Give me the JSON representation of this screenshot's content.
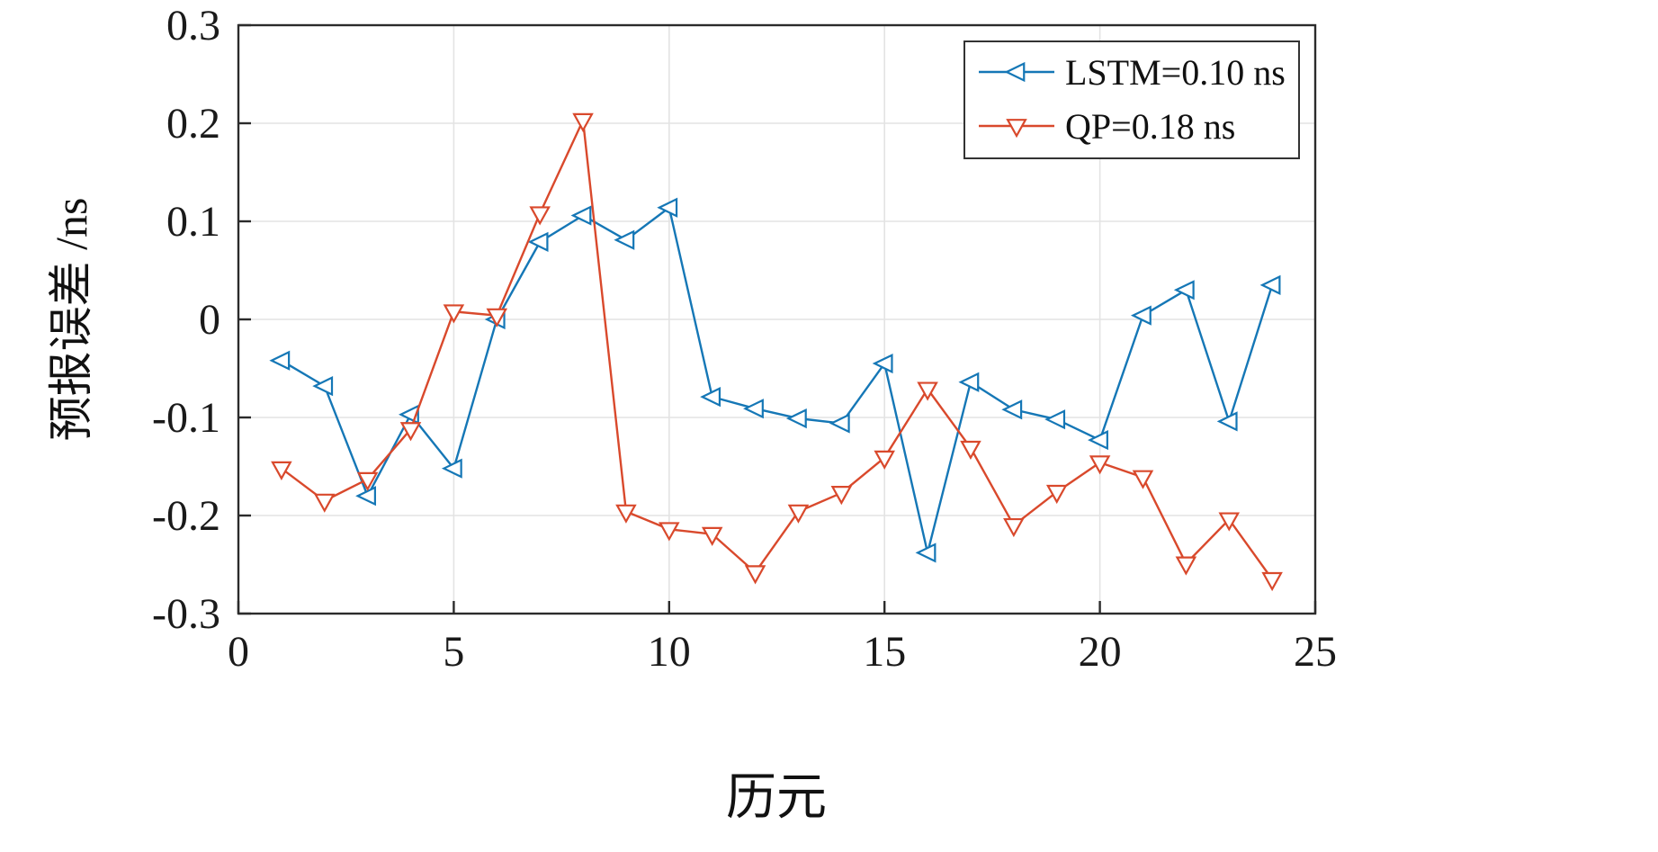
{
  "chart_data": {
    "type": "line",
    "title": "",
    "xlabel": "历元",
    "ylabel": "预报误差 /ns",
    "xlim": [
      0,
      25
    ],
    "ylim": [
      -0.3,
      0.3
    ],
    "xticks": [
      0,
      5,
      10,
      15,
      20,
      25
    ],
    "xtick_labels": [
      "0",
      "5",
      "10",
      "15",
      "20",
      "25"
    ],
    "yticks": [
      0.3,
      0.2,
      0.1,
      0,
      -0.1,
      -0.2,
      -0.3
    ],
    "ytick_labels": [
      "0.3",
      "0.2",
      "0.1",
      "0",
      "-0.1",
      "-0.2",
      "-0.3"
    ],
    "grid": true,
    "legend_position": "top-right",
    "x": [
      1,
      2,
      3,
      4,
      5,
      6,
      7,
      8,
      9,
      10,
      11,
      12,
      13,
      14,
      15,
      16,
      17,
      18,
      19,
      20,
      21,
      22,
      23,
      24
    ],
    "series": [
      {
        "name": "LSTM=0.10 ns",
        "color": "#1577b6",
        "marker": "triangle-left",
        "values": [
          -0.042,
          -0.068,
          -0.18,
          -0.097,
          -0.152,
          0.0,
          0.079,
          0.106,
          0.081,
          0.114,
          -0.079,
          -0.091,
          -0.101,
          -0.106,
          -0.045,
          -0.238,
          -0.064,
          -0.092,
          -0.102,
          -0.123,
          0.004,
          0.03,
          -0.104,
          0.035
        ]
      },
      {
        "name": "QP=0.18 ns",
        "color": "#d9492c",
        "marker": "triangle-down",
        "values": [
          -0.152,
          -0.185,
          -0.163,
          -0.112,
          0.008,
          0.004,
          0.108,
          0.203,
          -0.196,
          -0.214,
          -0.219,
          -0.258,
          -0.196,
          -0.177,
          -0.141,
          -0.071,
          -0.131,
          -0.21,
          -0.176,
          -0.146,
          -0.161,
          -0.249,
          -0.204,
          -0.265
        ]
      }
    ]
  },
  "colors": {
    "background": "#ffffff",
    "axis": "#2b2b2b",
    "grid": "#e3e3e3",
    "lstm_blue": "#1577b6",
    "qp_red": "#d9492c"
  }
}
